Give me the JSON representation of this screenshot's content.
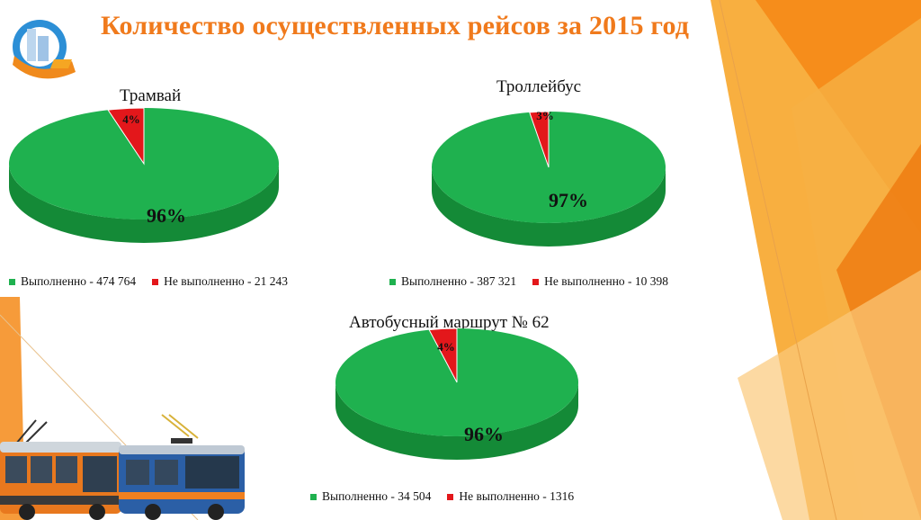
{
  "slide_title": "Количество осуществленных рейсов за 2015 год",
  "colors": {
    "done": "#1fb14f",
    "done_side": "#148a37",
    "not_done": "#e3171b",
    "not_done_side": "#a60f12",
    "accent": "#f07a1c"
  },
  "chart_data": [
    {
      "type": "pie",
      "title": "Трамвай",
      "labels": [
        "Выполненно",
        "Не выполненно"
      ],
      "values": [
        474764,
        21243
      ],
      "percent_labels": [
        "96%",
        "4%"
      ],
      "legend": [
        "Выполненно - 474 764",
        "Не выполненно - 21 243"
      ]
    },
    {
      "type": "pie",
      "title": "Троллейбус",
      "labels": [
        "Выполненно",
        "Не выполненно"
      ],
      "values": [
        387321,
        10398
      ],
      "percent_labels": [
        "97%",
        "3%"
      ],
      "legend": [
        "Выполненно - 387 321",
        "Не выполненно - 10 398"
      ]
    },
    {
      "type": "pie",
      "title": "Автобусный маршрут № 62",
      "labels": [
        "Выполненно",
        "Не выполненно"
      ],
      "values": [
        34504,
        1316
      ],
      "percent_labels": [
        "96%",
        "4%"
      ],
      "legend": [
        "Выполненно - 34 504",
        "Не выполненно - 1316"
      ]
    }
  ]
}
